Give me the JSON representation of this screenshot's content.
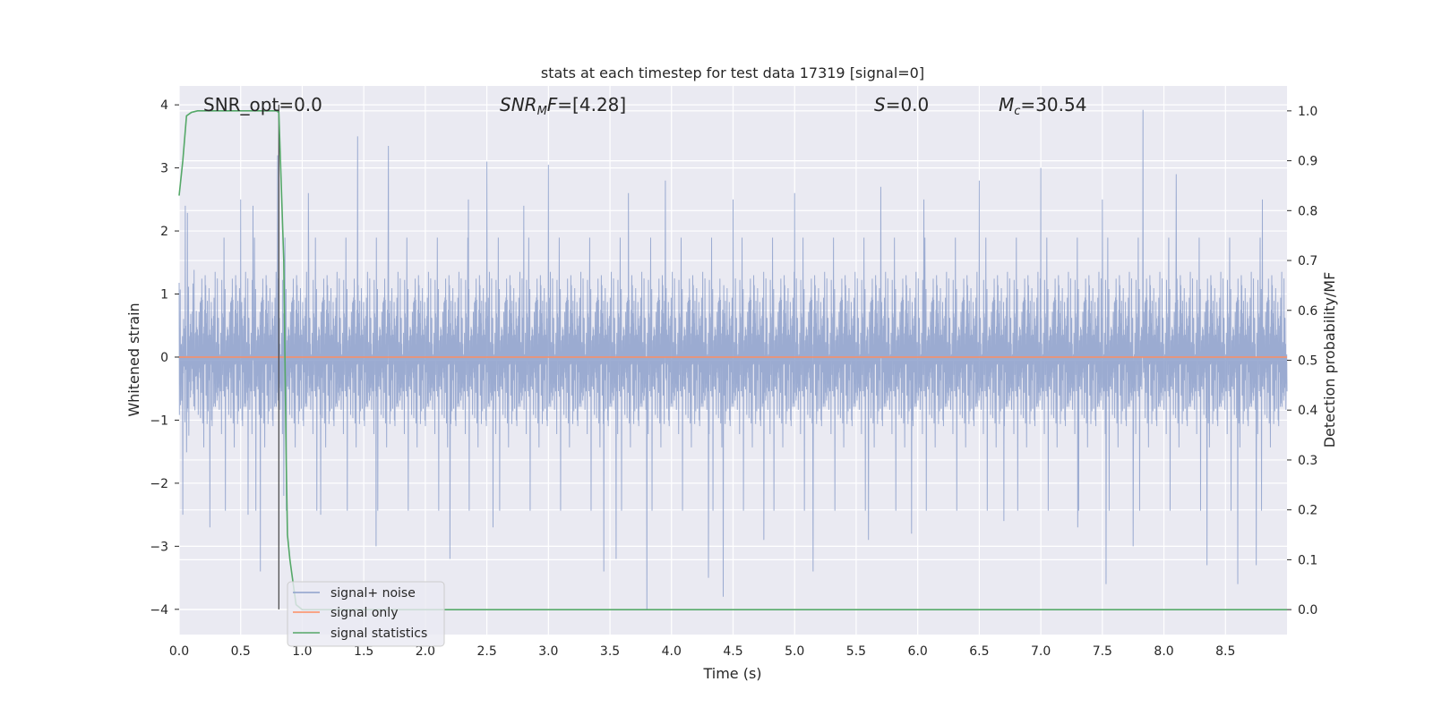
{
  "chart_data": {
    "type": "line",
    "title": "stats at each timestep for test data 17319 [signal=0]",
    "xlabel": "Time (s)",
    "ylabel": "Whitened strain",
    "y2label": "Detection probability/MF",
    "xlim": [
      0.0,
      9.0
    ],
    "ylim": [
      -4.4,
      4.3
    ],
    "y2lim": [
      -0.05,
      1.05
    ],
    "x_ticks": [
      0.0,
      0.5,
      1.0,
      1.5,
      2.0,
      2.5,
      3.0,
      3.5,
      4.0,
      4.5,
      5.0,
      5.5,
      6.0,
      6.5,
      7.0,
      7.5,
      8.0,
      8.5
    ],
    "x_tick_labels": [
      "0.0",
      "0.5",
      "1.0",
      "1.5",
      "2.0",
      "2.5",
      "3.0",
      "3.5",
      "4.0",
      "4.5",
      "5.0",
      "5.5",
      "6.0",
      "6.5",
      "7.0",
      "7.5",
      "8.0",
      "8.5"
    ],
    "y_ticks": [
      4,
      3,
      2,
      1,
      0,
      -1,
      -2,
      -3,
      -4
    ],
    "y_tick_labels": [
      "4",
      "3",
      "2",
      "1",
      "0",
      "−1",
      "−2",
      "−3",
      "−4"
    ],
    "y2_ticks": [
      1.0,
      0.9,
      0.8,
      0.7,
      0.6,
      0.5,
      0.4,
      0.3,
      0.2,
      0.1,
      0.0
    ],
    "y2_tick_labels": [
      "1.0",
      "0.9",
      "0.8",
      "0.7",
      "0.6",
      "0.5",
      "0.4",
      "0.3",
      "0.2",
      "0.1",
      "0.0"
    ],
    "grid": true,
    "legend_position": "lower-left",
    "annotations": {
      "snr_opt": "SNR_opt=0.0",
      "snr_mf_sym": "SNR",
      "snr_mf_sub": "M",
      "snr_mf_sym2": "F",
      "snr_mf_val": "=[4.28]",
      "s_sym": "S",
      "s_val": "=0.0",
      "mc_sym": "M",
      "mc_sub": "c",
      "mc_val": "=30.54"
    },
    "marker_line_x": 0.81,
    "series": [
      {
        "name": "signal+ noise",
        "color": "#8da0cb",
        "axis": "left",
        "description_stats": {
          "t_start": 0.0,
          "t_end": 9.0,
          "samples": 4000,
          "typical_abs": 1.5,
          "max": 3.92,
          "min": -4.0
        },
        "peaks": [
          [
            0.05,
            2.4
          ],
          [
            0.25,
            2.3
          ],
          [
            0.5,
            2.5
          ],
          [
            0.6,
            2.4
          ],
          [
            0.8,
            3.2
          ],
          [
            1.05,
            2.6
          ],
          [
            1.15,
            3.1
          ],
          [
            1.45,
            3.5
          ],
          [
            1.7,
            3.35
          ],
          [
            2.35,
            2.5
          ],
          [
            2.5,
            3.1
          ],
          [
            2.8,
            2.4
          ],
          [
            3.0,
            3.05
          ],
          [
            3.65,
            2.6
          ],
          [
            3.95,
            2.8
          ],
          [
            4.3,
            3.0
          ],
          [
            4.5,
            2.5
          ],
          [
            5.0,
            2.6
          ],
          [
            5.7,
            2.7
          ],
          [
            6.05,
            2.5
          ],
          [
            6.5,
            2.8
          ],
          [
            7.0,
            3.0
          ],
          [
            7.5,
            2.5
          ],
          [
            7.83,
            3.92
          ],
          [
            8.1,
            2.9
          ],
          [
            8.6,
            2.8
          ],
          [
            8.8,
            2.5
          ]
        ],
        "troughs": [
          [
            0.03,
            -2.5
          ],
          [
            0.25,
            -2.7
          ],
          [
            0.56,
            -2.5
          ],
          [
            0.66,
            -3.4
          ],
          [
            0.85,
            -2.2
          ],
          [
            1.15,
            -2.5
          ],
          [
            1.6,
            -3.0
          ],
          [
            2.2,
            -3.2
          ],
          [
            2.55,
            -2.7
          ],
          [
            3.45,
            -3.4
          ],
          [
            3.55,
            -3.2
          ],
          [
            3.8,
            -4.0
          ],
          [
            4.3,
            -3.5
          ],
          [
            4.42,
            -3.8
          ],
          [
            4.75,
            -2.9
          ],
          [
            5.15,
            -3.4
          ],
          [
            5.6,
            -2.9
          ],
          [
            5.95,
            -2.8
          ],
          [
            6.7,
            -2.6
          ],
          [
            7.3,
            -2.7
          ],
          [
            7.53,
            -3.6
          ],
          [
            7.75,
            -3.0
          ],
          [
            8.35,
            -3.3
          ],
          [
            8.6,
            -3.6
          ],
          [
            8.75,
            -3.3
          ]
        ]
      },
      {
        "name": "signal only",
        "color": "#fc8d62",
        "axis": "left",
        "x": [
          0.0,
          9.0
        ],
        "y": [
          0.0,
          0.0
        ]
      },
      {
        "name": "signal statistics",
        "color": "#55a868",
        "axis": "right",
        "x": [
          0.0,
          0.03,
          0.06,
          0.1,
          0.15,
          0.3,
          0.5,
          0.7,
          0.79,
          0.81,
          0.83,
          0.85,
          0.86,
          0.87,
          0.88,
          0.9,
          0.95,
          1.0,
          9.0
        ],
        "y": [
          0.83,
          0.9,
          0.99,
          0.997,
          1.0,
          1.0,
          1.0,
          1.0,
          1.0,
          0.997,
          0.85,
          0.7,
          0.5,
          0.3,
          0.15,
          0.1,
          0.01,
          0.0,
          0.0
        ]
      }
    ]
  }
}
